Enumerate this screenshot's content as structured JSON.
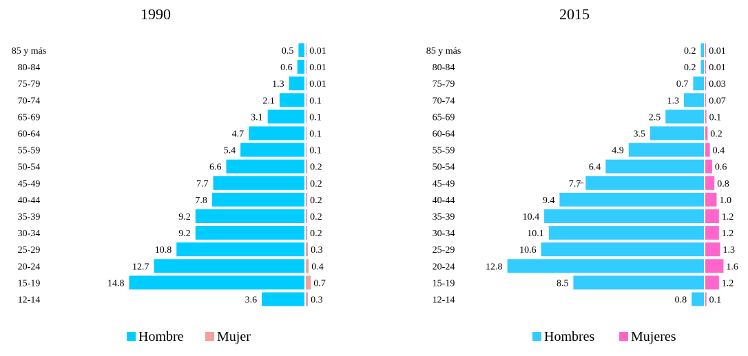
{
  "chart_data": [
    {
      "type": "bar",
      "orientation": "horizontal-population-pyramid",
      "title": "1990",
      "categories": [
        "85 y más",
        "80-84",
        "75-79",
        "70-74",
        "65-69",
        "60-64",
        "55-59",
        "50-54",
        "45-49",
        "40-44",
        "35-39",
        "30-34",
        "25-29",
        "20-24",
        "15-19",
        "12-14"
      ],
      "series": [
        {
          "name": "Hombre",
          "color": "#00CCFF",
          "values": [
            0.5,
            0.6,
            1.3,
            2.1,
            3.1,
            4.7,
            5.4,
            6.6,
            7.7,
            7.8,
            9.2,
            9.2,
            10.8,
            12.7,
            14.8,
            3.6
          ],
          "labels": [
            "0.5",
            "0.6",
            "1.3",
            "2.1",
            "3.1",
            "4.7",
            "5.4",
            "6.6",
            "7.7",
            "7.8",
            "9.2",
            "9.2",
            "10.8",
            "12.7",
            "14.8",
            "3.6"
          ]
        },
        {
          "name": "Mujer",
          "color": "#F4A0A0",
          "values": [
            0.01,
            0.01,
            0.01,
            0.1,
            0.1,
            0.1,
            0.1,
            0.2,
            0.2,
            0.2,
            0.2,
            0.2,
            0.3,
            0.4,
            0.7,
            0.3
          ],
          "labels": [
            "0.01",
            "0.01",
            "0.01",
            "0.1",
            "0.1",
            "0.1",
            "0.1",
            "0.2",
            "0.2",
            "0.2",
            "0.2",
            "0.2",
            "0.3",
            "0.4",
            "0.7",
            "0.3"
          ]
        }
      ],
      "legend_position": "bottom",
      "grid": false
    },
    {
      "type": "bar",
      "orientation": "horizontal-population-pyramid",
      "title": "2015",
      "categories": [
        "85 y más",
        "80-84",
        "75-79",
        "70-74",
        "65-69",
        "60-64",
        "55-59",
        "50-54",
        "45-49",
        "40-44",
        "35-39",
        "30-34",
        "25-29",
        "20-24",
        "15-19",
        "12-14"
      ],
      "series": [
        {
          "name": "Hombres",
          "color": "#33CCFF",
          "values": [
            0.2,
            0.2,
            0.7,
            1.3,
            2.5,
            3.5,
            4.9,
            6.4,
            7.7,
            9.4,
            10.4,
            10.1,
            10.6,
            12.8,
            8.5,
            0.8
          ],
          "labels": [
            "0.2",
            "0.2",
            "0.7",
            "1.3",
            "2.5",
            "3.5",
            "4.9",
            "6.4",
            "7.7",
            "9.4",
            "10.4",
            "10.1",
            "10.6",
            "12.8",
            "8.5",
            "0.8"
          ]
        },
        {
          "name": "Mujeres",
          "color": "#FF66CC",
          "values": [
            0.01,
            0.01,
            0.03,
            0.07,
            0.1,
            0.2,
            0.4,
            0.6,
            0.8,
            1.0,
            1.2,
            1.2,
            1.3,
            1.6,
            1.2,
            0.1
          ],
          "labels": [
            "0.01",
            "0.01",
            "0.03",
            "0.07",
            "0.1",
            "0.2",
            "0.4",
            "0.6",
            "0.8",
            "1.0",
            "1.2",
            "1.2",
            "1.3",
            "1.6",
            "1.2",
            "0.1"
          ]
        }
      ],
      "legend_position": "bottom",
      "grid": false
    }
  ]
}
